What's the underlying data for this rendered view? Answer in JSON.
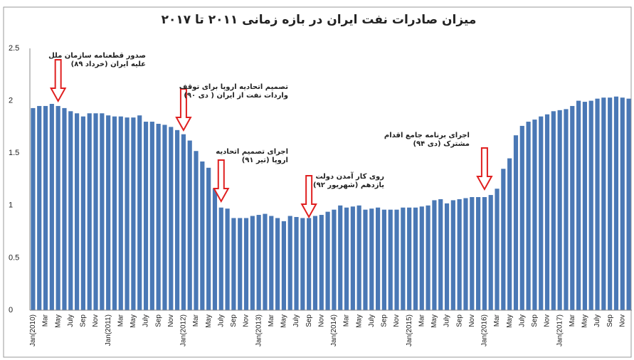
{
  "chart_data": {
    "type": "bar",
    "title": "میزان صادرات نفت ایران در بازه زمانی ۲۰۱۱ تا ۲۰۱۷",
    "categories": [
      "Jan(2010)",
      null,
      "Mar",
      null,
      "May",
      null,
      "July",
      null,
      "Sep",
      null,
      "Nov",
      null,
      "Jan(2011)",
      null,
      "Mar",
      null,
      "May",
      null,
      "July",
      null,
      "Sep",
      null,
      "Nov",
      null,
      "Jan(2012)",
      null,
      "Mar",
      null,
      "May",
      null,
      "July",
      null,
      "Sep",
      null,
      "Nov",
      null,
      "Jan(2013)",
      null,
      "Mar",
      null,
      "May",
      null,
      "July",
      null,
      "Sep",
      null,
      "Nov",
      null,
      "Jan(2014)",
      null,
      "Mar",
      null,
      "May",
      null,
      "July",
      null,
      "Sep",
      null,
      "Nov",
      null,
      "Jan(2015)",
      null,
      "Mar",
      null,
      "May",
      null,
      "July",
      null,
      "Sep",
      null,
      "Nov",
      null,
      "Jan(2016)",
      null,
      "Mar",
      null,
      "May",
      null,
      "July",
      null,
      "Sep",
      null,
      "Nov",
      null,
      "Jan(2017)",
      null,
      "Mar",
      null,
      "May",
      null,
      "July",
      null,
      "Sep",
      null,
      "Nov",
      null
    ],
    "values": [
      1.93,
      1.95,
      1.95,
      1.97,
      1.95,
      1.93,
      1.9,
      1.88,
      1.85,
      1.88,
      1.88,
      1.88,
      1.86,
      1.85,
      1.85,
      1.84,
      1.84,
      1.86,
      1.8,
      1.8,
      1.78,
      1.77,
      1.75,
      1.72,
      1.68,
      1.62,
      1.52,
      1.42,
      1.36,
      1.16,
      0.98,
      0.97,
      0.88,
      0.88,
      0.88,
      0.9,
      0.91,
      0.92,
      0.9,
      0.88,
      0.85,
      0.9,
      0.89,
      0.88,
      0.88,
      0.9,
      0.91,
      0.94,
      0.96,
      1.0,
      0.98,
      0.99,
      1.0,
      0.96,
      0.97,
      0.98,
      0.96,
      0.96,
      0.96,
      0.98,
      0.98,
      0.98,
      0.99,
      1.0,
      1.05,
      1.06,
      1.02,
      1.05,
      1.06,
      1.07,
      1.08,
      1.08,
      1.08,
      1.1,
      1.16,
      1.35,
      1.45,
      1.67,
      1.76,
      1.8,
      1.82,
      1.85,
      1.87,
      1.9,
      1.91,
      1.92,
      1.95,
      2.0,
      1.99,
      2.0,
      2.02,
      2.03,
      2.03,
      2.04,
      2.03,
      2.02
    ],
    "color": "#4a78b5",
    "ylim": [
      0,
      2.5
    ],
    "yticks": [
      0,
      0.5,
      1,
      1.5,
      2,
      2.5
    ],
    "grid": false,
    "annotations": [
      [
        "صدور قطعنامه سازمان ملل",
        "علیه ایران (خرداد ۸۹)"
      ],
      [
        "تصمیم اتحادیه اروپا برای توقف",
        "واردات نفت از ایران ( دی ۹۰)"
      ],
      [
        "اجرای تصمیم اتحادیه",
        "اروپا (تیر ۹۱)"
      ],
      [
        "روی کار آمدن دولت",
        "یازدهم (شهریور ۹۲)"
      ],
      [
        "اجرای برنامه جامع اقدام",
        "مشترک (دی ۹۴)"
      ]
    ]
  }
}
